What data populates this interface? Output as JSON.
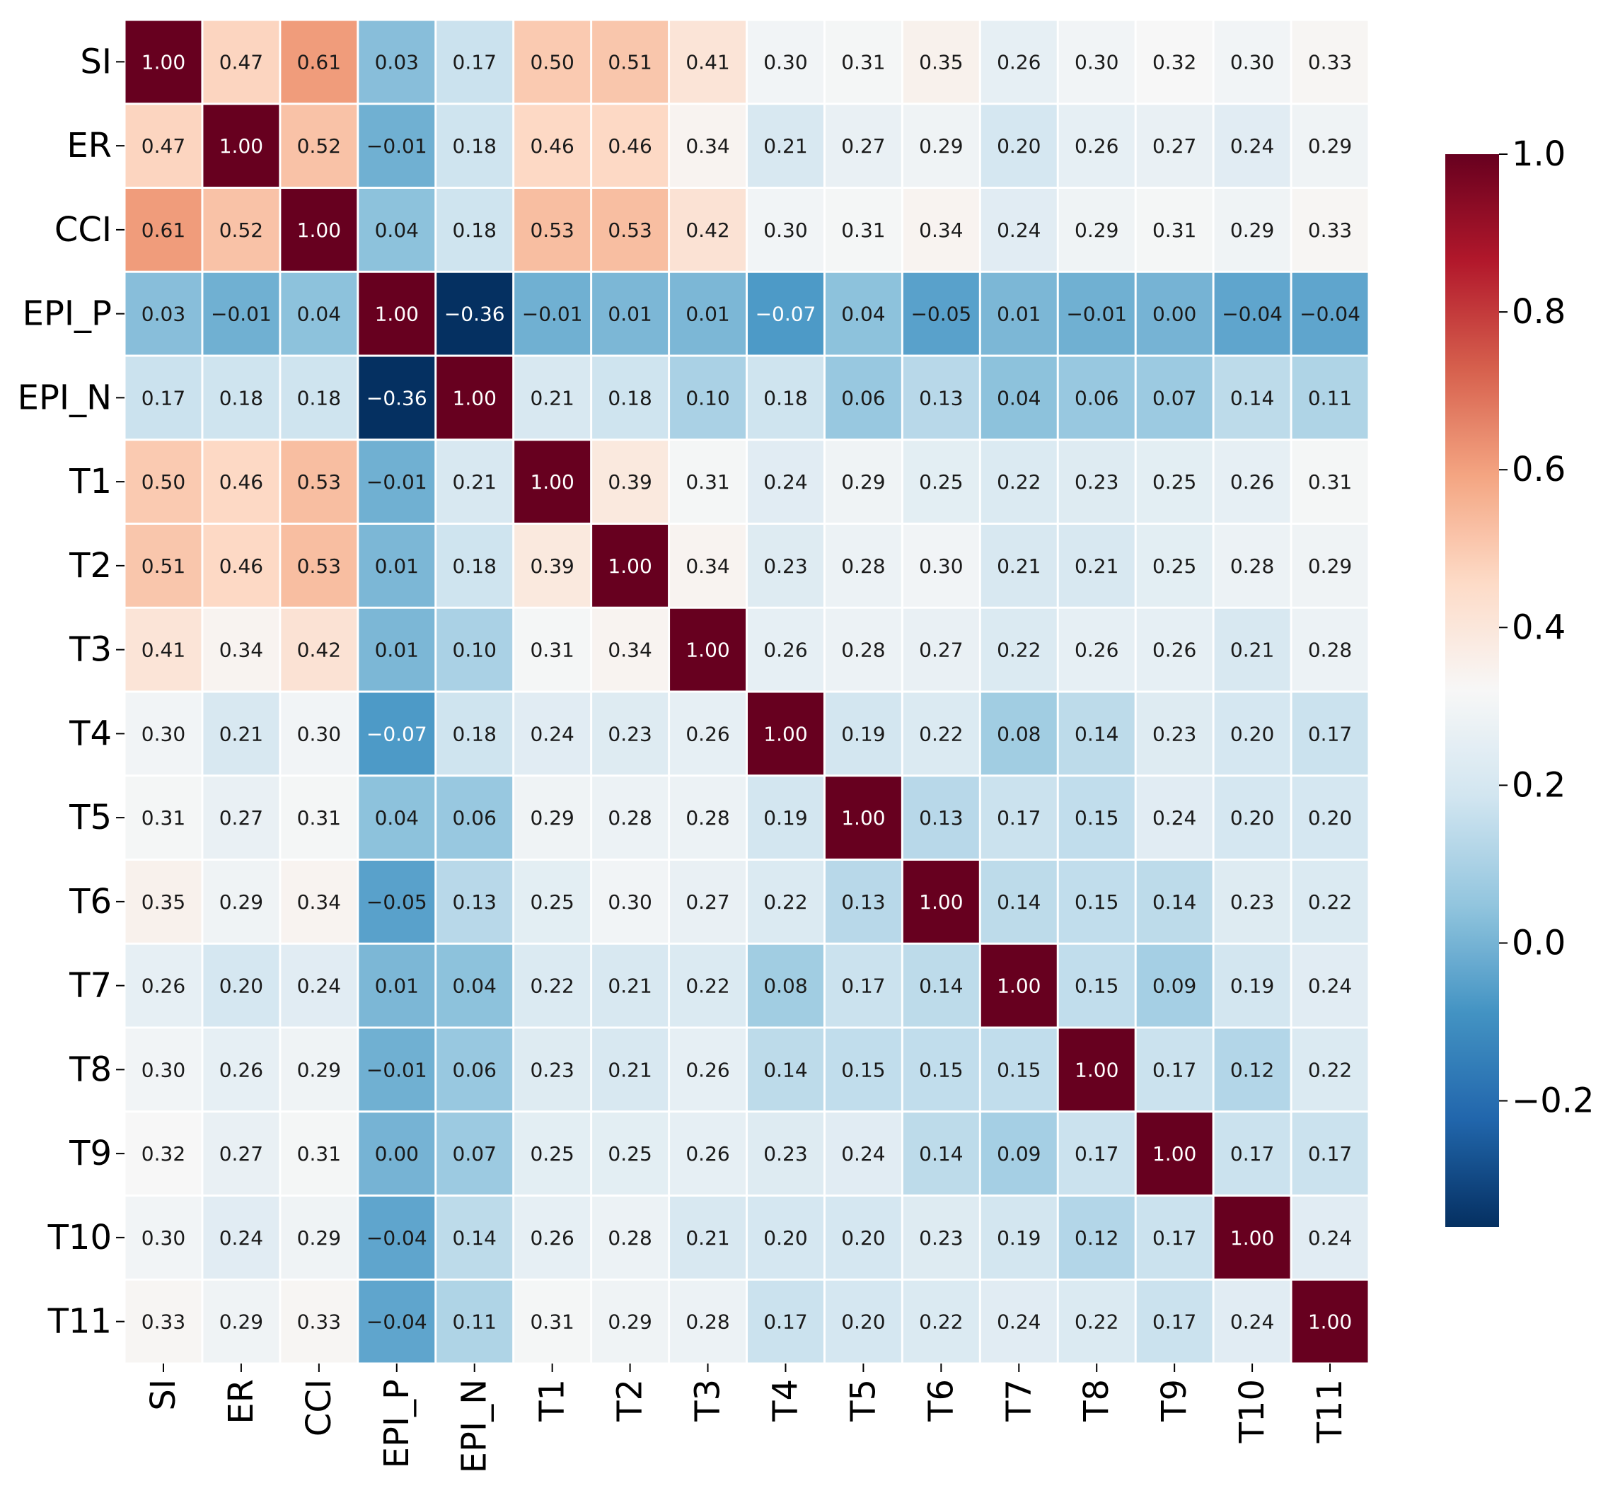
{
  "chart_data": {
    "type": "heatmap",
    "title": "",
    "xlabel": "",
    "ylabel": "",
    "categories": [
      "SI",
      "ER",
      "CCI",
      "EPI_P",
      "EPI_N",
      "T1",
      "T2",
      "T3",
      "T4",
      "T5",
      "T6",
      "T7",
      "T8",
      "T9",
      "T10",
      "T11"
    ],
    "matrix": [
      [
        1.0,
        0.47,
        0.61,
        0.03,
        0.17,
        0.5,
        0.51,
        0.41,
        0.3,
        0.31,
        0.35,
        0.26,
        0.3,
        0.32,
        0.3,
        0.33
      ],
      [
        0.47,
        1.0,
        0.52,
        -0.01,
        0.18,
        0.46,
        0.46,
        0.34,
        0.21,
        0.27,
        0.29,
        0.2,
        0.26,
        0.27,
        0.24,
        0.29
      ],
      [
        0.61,
        0.52,
        1.0,
        0.04,
        0.18,
        0.53,
        0.53,
        0.42,
        0.3,
        0.31,
        0.34,
        0.24,
        0.29,
        0.31,
        0.29,
        0.33
      ],
      [
        0.03,
        -0.01,
        0.04,
        1.0,
        -0.36,
        -0.01,
        0.01,
        0.01,
        -0.07,
        0.04,
        -0.05,
        0.01,
        -0.01,
        0.0,
        -0.04,
        -0.04
      ],
      [
        0.17,
        0.18,
        0.18,
        -0.36,
        1.0,
        0.21,
        0.18,
        0.1,
        0.18,
        0.06,
        0.13,
        0.04,
        0.06,
        0.07,
        0.14,
        0.11
      ],
      [
        0.5,
        0.46,
        0.53,
        -0.01,
        0.21,
        1.0,
        0.39,
        0.31,
        0.24,
        0.29,
        0.25,
        0.22,
        0.23,
        0.25,
        0.26,
        0.31
      ],
      [
        0.51,
        0.46,
        0.53,
        0.01,
        0.18,
        0.39,
        1.0,
        0.34,
        0.23,
        0.28,
        0.3,
        0.21,
        0.21,
        0.25,
        0.28,
        0.29
      ],
      [
        0.41,
        0.34,
        0.42,
        0.01,
        0.1,
        0.31,
        0.34,
        1.0,
        0.26,
        0.28,
        0.27,
        0.22,
        0.26,
        0.26,
        0.21,
        0.28
      ],
      [
        0.3,
        0.21,
        0.3,
        -0.07,
        0.18,
        0.24,
        0.23,
        0.26,
        1.0,
        0.19,
        0.22,
        0.08,
        0.14,
        0.23,
        0.2,
        0.17
      ],
      [
        0.31,
        0.27,
        0.31,
        0.04,
        0.06,
        0.29,
        0.28,
        0.28,
        0.19,
        1.0,
        0.13,
        0.17,
        0.15,
        0.24,
        0.2,
        0.2
      ],
      [
        0.35,
        0.29,
        0.34,
        -0.05,
        0.13,
        0.25,
        0.3,
        0.27,
        0.22,
        0.13,
        1.0,
        0.14,
        0.15,
        0.14,
        0.23,
        0.22
      ],
      [
        0.26,
        0.2,
        0.24,
        0.01,
        0.04,
        0.22,
        0.21,
        0.22,
        0.08,
        0.17,
        0.14,
        1.0,
        0.15,
        0.09,
        0.19,
        0.24
      ],
      [
        0.3,
        0.26,
        0.29,
        -0.01,
        0.06,
        0.23,
        0.21,
        0.26,
        0.14,
        0.15,
        0.15,
        0.15,
        1.0,
        0.17,
        0.12,
        0.22
      ],
      [
        0.32,
        0.27,
        0.31,
        0.0,
        0.07,
        0.25,
        0.25,
        0.26,
        0.23,
        0.24,
        0.14,
        0.09,
        0.17,
        1.0,
        0.17,
        0.17
      ],
      [
        0.3,
        0.24,
        0.29,
        -0.04,
        0.14,
        0.26,
        0.28,
        0.21,
        0.2,
        0.2,
        0.23,
        0.19,
        0.12,
        0.17,
        1.0,
        0.24
      ],
      [
        0.33,
        0.29,
        0.33,
        -0.04,
        0.11,
        0.31,
        0.29,
        0.28,
        0.17,
        0.2,
        0.22,
        0.24,
        0.22,
        0.17,
        0.24,
        1.0
      ]
    ],
    "colormap": "RdBu_r",
    "vmin": -0.36,
    "vmax": 1.0,
    "vcenter": 0.32,
    "colorbar": {
      "ticks": [
        1.0,
        0.8,
        0.6,
        0.4,
        0.2,
        0.0,
        -0.2
      ],
      "tick_labels": [
        "1.0",
        "0.8",
        "0.6",
        "0.4",
        "0.2",
        "0.0",
        "−0.2"
      ],
      "placement": "right"
    },
    "grid": "white cell separators"
  },
  "colors": {
    "cmap_stops": [
      "#053061",
      "#2166ac",
      "#4393c3",
      "#92c5de",
      "#d1e5f0",
      "#f7f7f7",
      "#fddbc7",
      "#f4a582",
      "#d6604d",
      "#b2182b",
      "#67001f"
    ],
    "separator": "#ffffff",
    "text_dark": "#1a1a1a",
    "text_light": "#ffffff"
  }
}
